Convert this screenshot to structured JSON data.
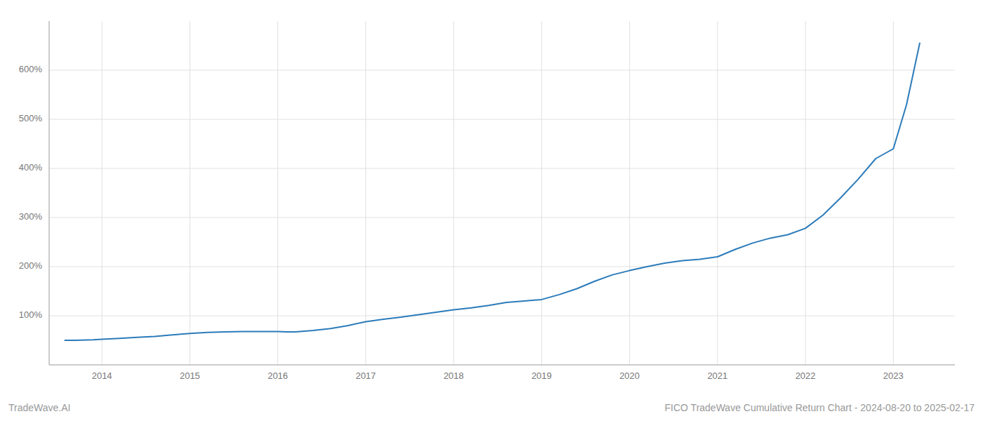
{
  "chart_data": {
    "type": "line",
    "title": "FICO TradeWave Cumulative Return Chart - 2024-08-20 to 2025-02-17",
    "annotations": [
      "TradeWave.AI"
    ],
    "color": "#2b7bba",
    "grid": true,
    "x": [
      2013.58,
      2013.7,
      2013.9,
      2014.0,
      2014.2,
      2014.4,
      2014.6,
      2014.8,
      2015.0,
      2015.2,
      2015.4,
      2015.6,
      2015.8,
      2016.0,
      2016.1,
      2016.2,
      2016.4,
      2016.6,
      2016.8,
      2017.0,
      2017.2,
      2017.4,
      2017.6,
      2017.8,
      2018.0,
      2018.2,
      2018.4,
      2018.6,
      2018.8,
      2019.0,
      2019.2,
      2019.4,
      2019.6,
      2019.8,
      2020.0,
      2020.2,
      2020.4,
      2020.6,
      2020.8,
      2021.0,
      2021.2,
      2021.4,
      2021.6,
      2021.8,
      2022.0,
      2022.2,
      2022.4,
      2022.6,
      2022.8,
      2023.0,
      2023.15,
      2023.3
    ],
    "values": [
      50,
      50,
      51,
      52,
      54,
      56,
      58,
      61,
      64,
      66,
      67,
      68,
      68,
      68,
      67,
      67,
      70,
      74,
      80,
      88,
      93,
      97,
      102,
      107,
      112,
      116,
      121,
      127,
      130,
      133,
      143,
      155,
      170,
      183,
      192,
      200,
      207,
      212,
      215,
      220,
      235,
      248,
      258,
      265,
      278,
      305,
      340,
      378,
      420,
      440,
      530,
      655
    ],
    "xlim": [
      2013.4,
      2023.7
    ],
    "xticks": [
      2014,
      2015,
      2016,
      2017,
      2018,
      2019,
      2020,
      2021,
      2022,
      2023
    ],
    "ylim": [
      0,
      700
    ],
    "yticks": [
      {
        "value": 100,
        "label": "100%"
      },
      {
        "value": 200,
        "label": "200%"
      },
      {
        "value": 300,
        "label": "300%"
      },
      {
        "value": 400,
        "label": "400%"
      },
      {
        "value": 500,
        "label": "500%"
      },
      {
        "value": 600,
        "label": "600%"
      }
    ]
  }
}
